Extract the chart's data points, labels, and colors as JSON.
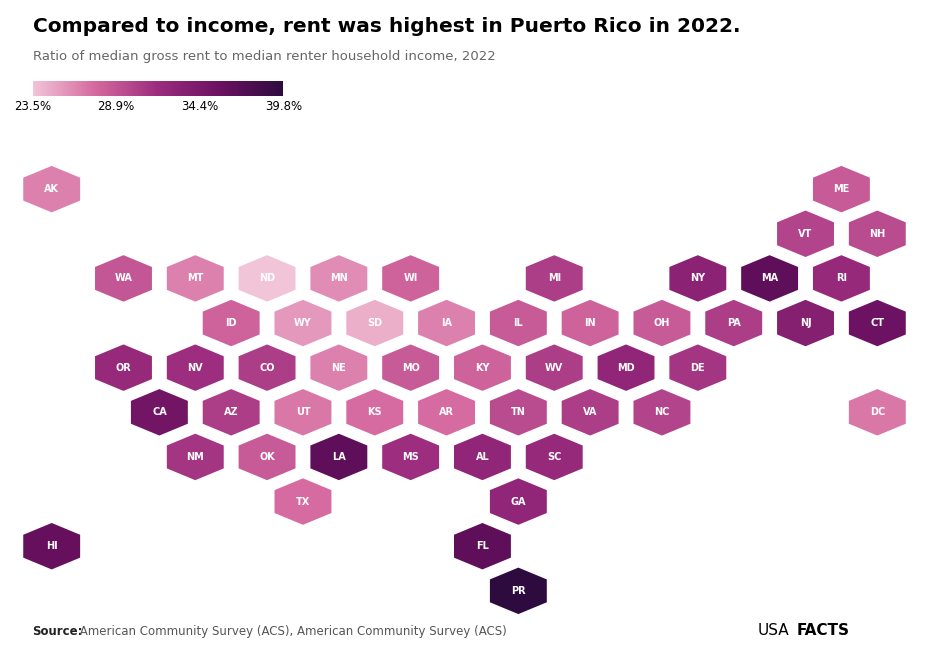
{
  "title": "Compared to income, rent was highest in Puerto Rico in 2022.",
  "subtitle": "Ratio of median gross rent to median renter household income, 2022",
  "source_bold": "Source:",
  "source_regular": " American Community Survey (ACS), American Community Survey (ACS)",
  "colorbar_min": 23.5,
  "colorbar_max": 39.8,
  "colorbar_ticks": [
    23.5,
    28.9,
    34.4,
    39.8
  ],
  "color_low": "#f2c4d8",
  "color_mid1": "#d4699e",
  "color_mid2": "#9b2b7e",
  "color_mid3": "#6b1060",
  "color_high": "#2e0b3e",
  "states": {
    "AK": {
      "col": 0,
      "row": 0,
      "value": 26.5
    },
    "ME": {
      "col": 11,
      "row": 0,
      "value": 28.5
    },
    "VT": {
      "col": 10,
      "row": 1,
      "value": 30.0
    },
    "NH": {
      "col": 11,
      "row": 1,
      "value": 29.5
    },
    "WA": {
      "col": 1,
      "row": 2,
      "value": 28.8
    },
    "MT": {
      "col": 2,
      "row": 2,
      "value": 26.5
    },
    "ND": {
      "col": 3,
      "row": 2,
      "value": 23.5
    },
    "MN": {
      "col": 4,
      "row": 2,
      "value": 26.0
    },
    "WI": {
      "col": 5,
      "row": 2,
      "value": 28.0
    },
    "MI": {
      "col": 7,
      "row": 2,
      "value": 30.5
    },
    "NY": {
      "col": 9,
      "row": 2,
      "value": 33.0
    },
    "MA": {
      "col": 10,
      "row": 2,
      "value": 36.5
    },
    "RI": {
      "col": 11,
      "row": 2,
      "value": 32.0
    },
    "ID": {
      "col": 2,
      "row": 3,
      "value": 28.0
    },
    "WY": {
      "col": 3,
      "row": 3,
      "value": 25.5
    },
    "SD": {
      "col": 4,
      "row": 3,
      "value": 24.5
    },
    "IA": {
      "col": 5,
      "row": 3,
      "value": 26.5
    },
    "IL": {
      "col": 6,
      "row": 3,
      "value": 28.5
    },
    "IN": {
      "col": 7,
      "row": 3,
      "value": 28.0
    },
    "OH": {
      "col": 8,
      "row": 3,
      "value": 28.5
    },
    "PA": {
      "col": 9,
      "row": 3,
      "value": 30.5
    },
    "NJ": {
      "col": 10,
      "row": 3,
      "value": 33.5
    },
    "CT": {
      "col": 11,
      "row": 3,
      "value": 35.5
    },
    "OR": {
      "col": 1,
      "row": 4,
      "value": 32.0
    },
    "NV": {
      "col": 2,
      "row": 4,
      "value": 31.5
    },
    "CO": {
      "col": 3,
      "row": 4,
      "value": 30.5
    },
    "NE": {
      "col": 4,
      "row": 4,
      "value": 26.5
    },
    "MO": {
      "col": 5,
      "row": 4,
      "value": 28.5
    },
    "KY": {
      "col": 6,
      "row": 4,
      "value": 28.0
    },
    "WV": {
      "col": 7,
      "row": 4,
      "value": 30.5
    },
    "MD": {
      "col": 8,
      "row": 4,
      "value": 32.5
    },
    "DE": {
      "col": 9,
      "row": 4,
      "value": 31.0
    },
    "CA": {
      "col": 1,
      "row": 5,
      "value": 35.0
    },
    "AZ": {
      "col": 2,
      "row": 5,
      "value": 30.5
    },
    "UT": {
      "col": 3,
      "row": 5,
      "value": 27.0
    },
    "KS": {
      "col": 4,
      "row": 5,
      "value": 27.5
    },
    "AR": {
      "col": 5,
      "row": 5,
      "value": 27.5
    },
    "TN": {
      "col": 6,
      "row": 5,
      "value": 29.5
    },
    "VA": {
      "col": 7,
      "row": 5,
      "value": 30.5
    },
    "NC": {
      "col": 8,
      "row": 5,
      "value": 30.0
    },
    "DC": {
      "col": 11,
      "row": 5,
      "value": 27.0
    },
    "NM": {
      "col": 2,
      "row": 6,
      "value": 31.0
    },
    "OK": {
      "col": 3,
      "row": 6,
      "value": 28.5
    },
    "LA": {
      "col": 4,
      "row": 6,
      "value": 36.5
    },
    "MS": {
      "col": 5,
      "row": 6,
      "value": 31.5
    },
    "AL": {
      "col": 6,
      "row": 6,
      "value": 32.5
    },
    "SC": {
      "col": 7,
      "row": 6,
      "value": 32.0
    },
    "TX": {
      "col": 3,
      "row": 7,
      "value": 27.5
    },
    "GA": {
      "col": 6,
      "row": 7,
      "value": 32.5
    },
    "HI": {
      "col": 0,
      "row": 8,
      "value": 36.0
    },
    "FL": {
      "col": 6,
      "row": 8,
      "value": 36.5
    },
    "PR": {
      "col": 6,
      "row": 9,
      "value": 39.8
    }
  }
}
